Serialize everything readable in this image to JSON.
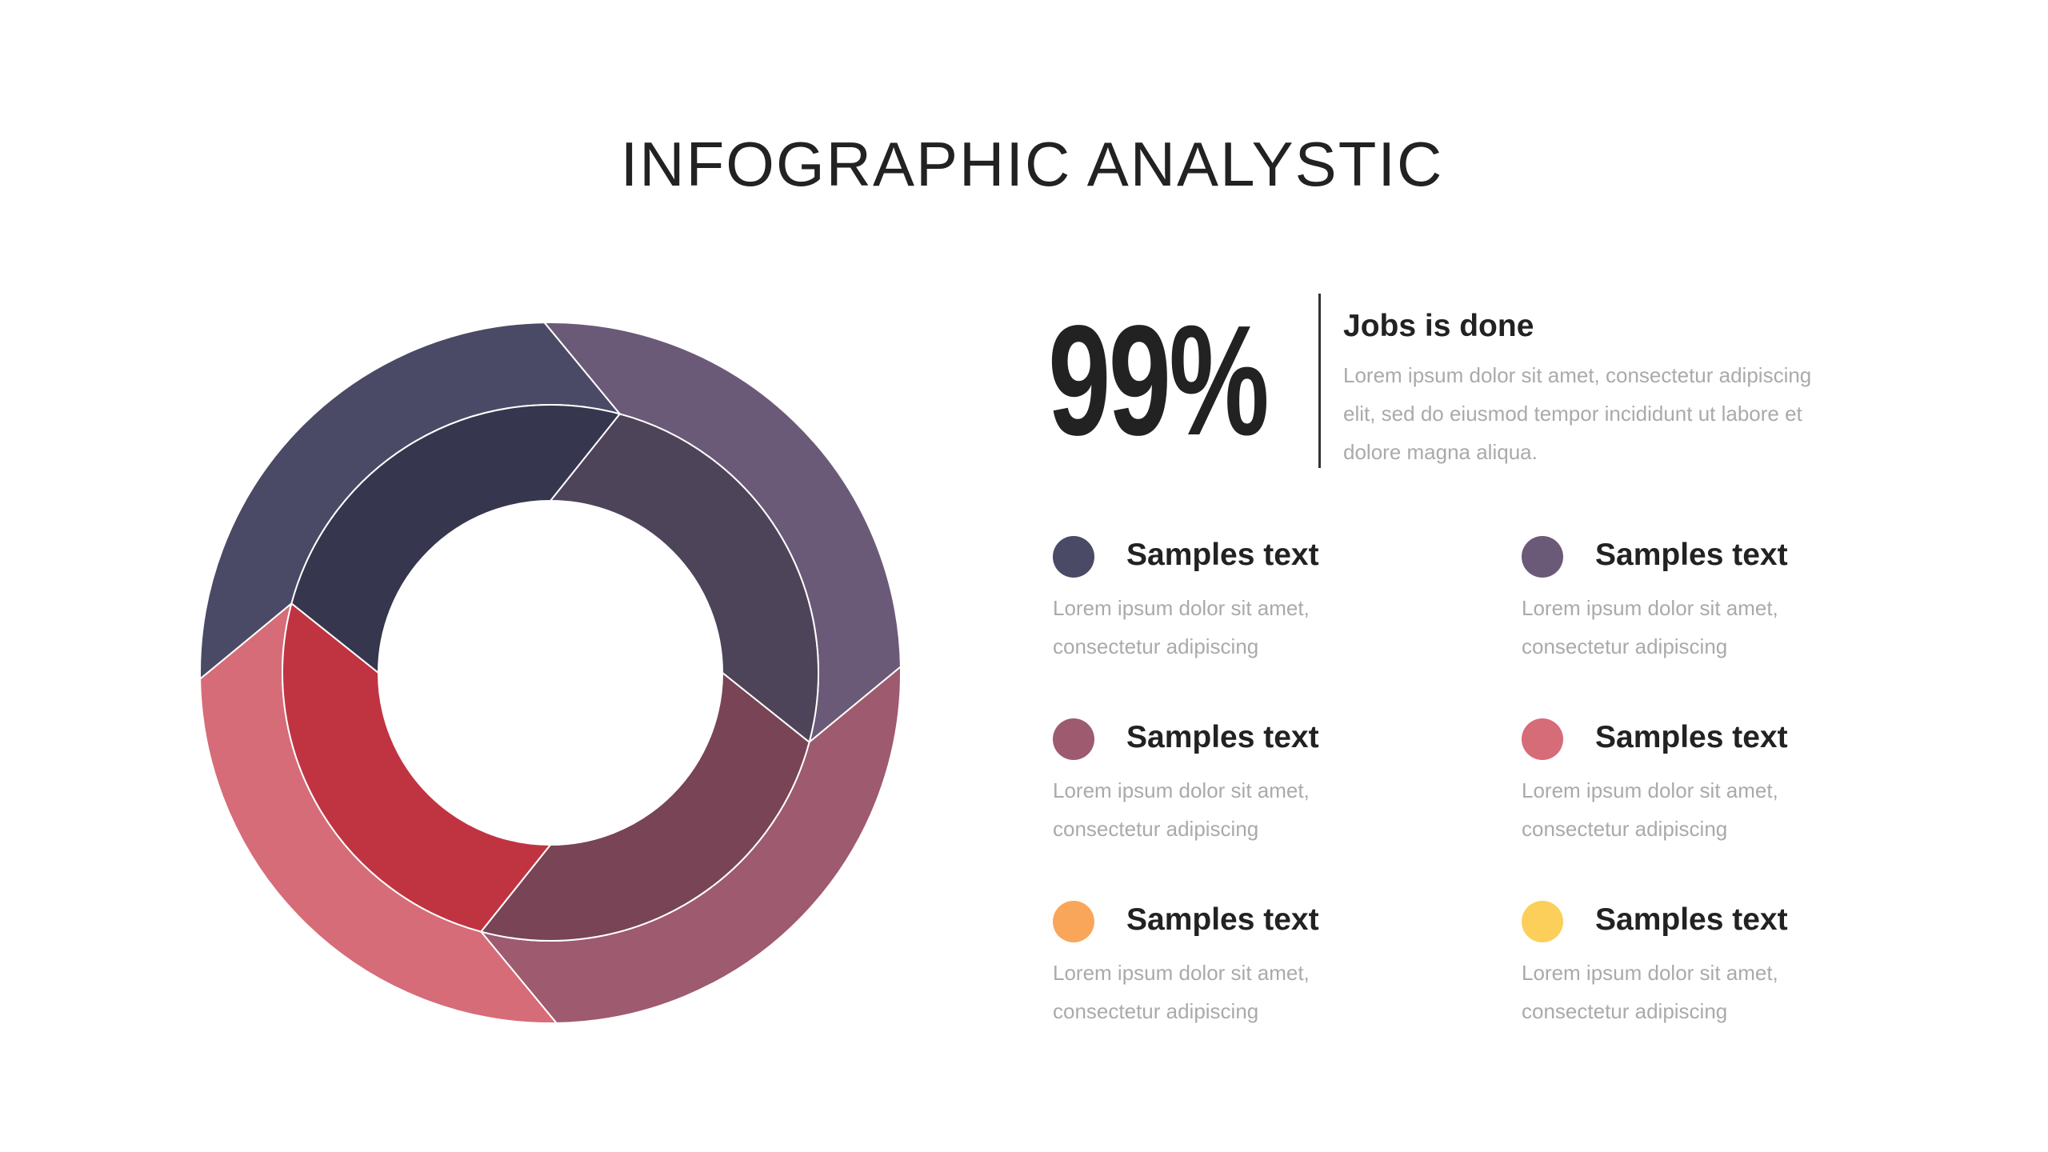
{
  "header": {
    "title": "INFOGRAPHIC ANALYSTIC"
  },
  "stat": {
    "value": "99%",
    "heading": "Jobs is done",
    "text": [
      "Lorem ipsum dolor sit amet, consectetur adipiscing",
      "elit, sed do eiusmod tempor incididunt ut labore et",
      "dolore magna aliqua."
    ]
  },
  "items": [
    {
      "title": "Samples text",
      "text": [
        "Lorem ipsum dolor sit amet,",
        "consectetur adipiscing"
      ]
    },
    {
      "title": "Samples text",
      "text": [
        "Lorem ipsum dolor sit amet,",
        "consectetur adipiscing"
      ]
    },
    {
      "title": "Samples text",
      "text": [
        "Lorem ipsum dolor sit amet,",
        "consectetur adipiscing"
      ]
    },
    {
      "title": "Samples text",
      "text": [
        "Lorem ipsum dolor sit amet,",
        "consectetur adipiscing"
      ]
    },
    {
      "title": "Samples text",
      "text": [
        "Lorem ipsum dolor sit amet,",
        "consectetur adipiscing"
      ]
    },
    {
      "title": "Samples text",
      "text": [
        "Lorem ipsum dolor sit amet,",
        "consectetur adipiscing"
      ]
    }
  ]
}
